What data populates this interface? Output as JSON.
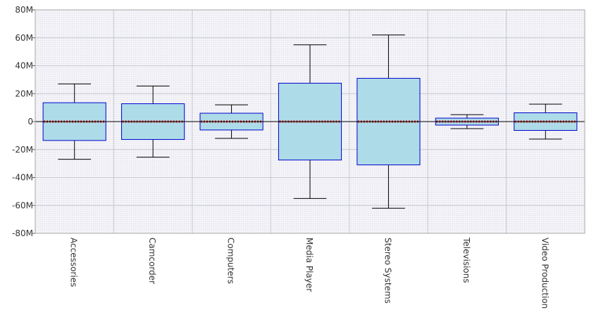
{
  "chart_data": {
    "type": "boxplot",
    "title": "",
    "xlabel": "",
    "ylabel": "",
    "ylim": [
      -80000000,
      80000000
    ],
    "y_ticks": [
      {
        "value": 80000000,
        "label": "80M"
      },
      {
        "value": 60000000,
        "label": "60M"
      },
      {
        "value": 40000000,
        "label": "40M"
      },
      {
        "value": 20000000,
        "label": "20M"
      },
      {
        "value": 0,
        "label": "0"
      },
      {
        "value": -20000000,
        "label": "-20M"
      },
      {
        "value": -40000000,
        "label": "-40M"
      },
      {
        "value": -60000000,
        "label": "-60M"
      },
      {
        "value": -80000000,
        "label": "-80M"
      }
    ],
    "grid": true,
    "categories": [
      "Accessories",
      "Camcorder",
      "Computers",
      "Media Player",
      "Stereo Systems",
      "Televisions",
      "Video Production"
    ],
    "boxes": [
      {
        "min": -27000000,
        "q1": -13500000,
        "median": 0,
        "q3": 13500000,
        "max": 27000000
      },
      {
        "min": -25500000,
        "q1": -12800000,
        "median": 0,
        "q3": 12800000,
        "max": 25500000
      },
      {
        "min": -12000000,
        "q1": -6000000,
        "median": 0,
        "q3": 6000000,
        "max": 12000000
      },
      {
        "min": -55000000,
        "q1": -27500000,
        "median": 0,
        "q3": 27500000,
        "max": 55000000
      },
      {
        "min": -62000000,
        "q1": -31000000,
        "median": 0,
        "q3": 31000000,
        "max": 62000000
      },
      {
        "min": -5000000,
        "q1": -2500000,
        "median": 0,
        "q3": 2500000,
        "max": 5000000
      },
      {
        "min": -12500000,
        "q1": -6300000,
        "median": 0,
        "q3": 6300000,
        "max": 12500000
      }
    ],
    "colors": {
      "box_fill": "#ADDCE8",
      "box_stroke": "#0000CC",
      "median": "#CC0000",
      "whisker": "#000000",
      "plot_bg": "#EEEEF5",
      "grid": "#C8C8D2"
    }
  }
}
